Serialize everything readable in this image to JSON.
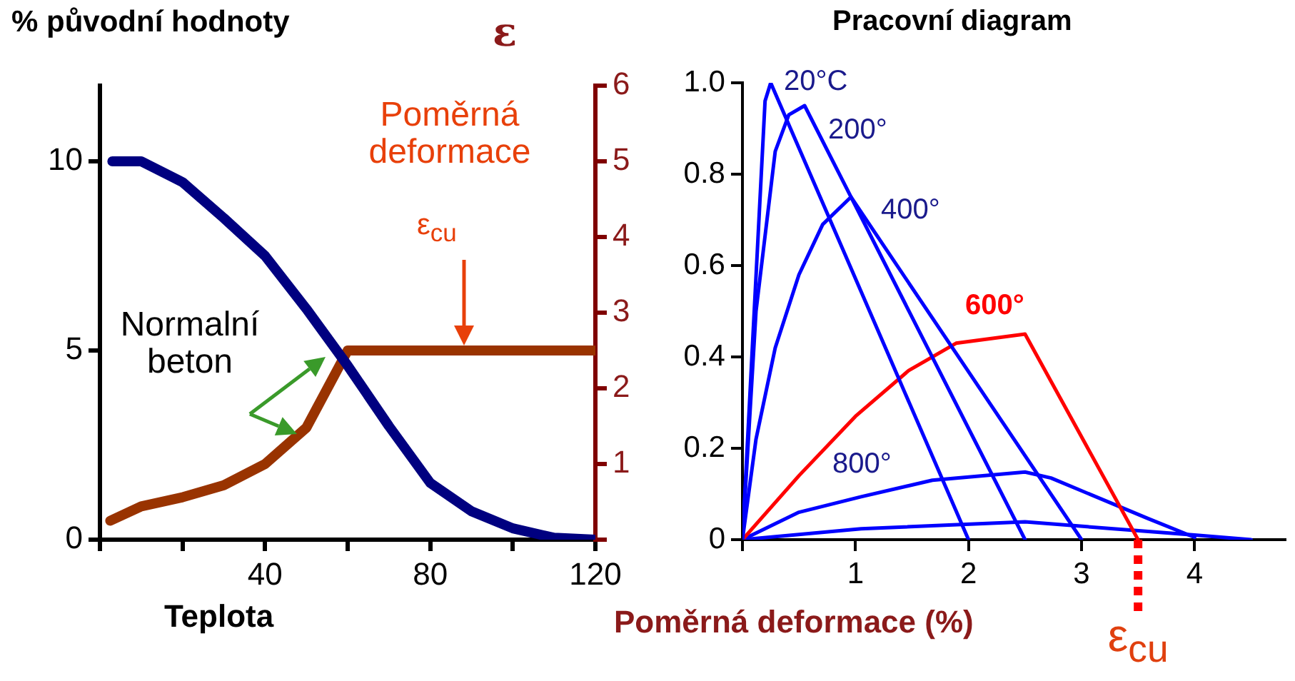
{
  "chart_data": [
    {
      "type": "line",
      "title": "% původní hodnoty",
      "xlabel": "Teplota",
      "y2label": "ε",
      "annotations": [
        "Poměrná deformace",
        "ε$_{cu}$",
        "Normalní beton"
      ],
      "xlim": [
        0,
        120
      ],
      "xticks": [
        {
          "value": 0,
          "label": null
        },
        {
          "value": 20,
          "label": null
        },
        40,
        {
          "value": 60,
          "label": null
        },
        80,
        {
          "value": 100,
          "label": null
        },
        120
      ],
      "ylim": [
        0,
        12
      ],
      "yticks": [
        0,
        5,
        10
      ],
      "y2lim": [
        0,
        6
      ],
      "y2ticks": [
        {
          "value": 0,
          "label": null
        },
        1,
        2,
        3,
        4,
        5,
        6
      ],
      "grid": false,
      "legend": false,
      "series": [
        {
          "color": "#000080",
          "x": [
            3,
            10,
            20,
            30,
            40,
            50,
            60,
            70,
            80,
            90,
            100,
            110,
            120
          ],
          "values": [
            10,
            10,
            9.45,
            8.5,
            7.5,
            6.1,
            4.6,
            3.0,
            1.5,
            0.75,
            0.3,
            0.05,
            0
          ]
        },
        {
          "color": "#993300",
          "axis": "y2",
          "x": [
            2.5,
            10,
            20,
            30,
            40,
            50,
            60,
            120
          ],
          "values": [
            0.25,
            0.44,
            0.56,
            0.72,
            1.0,
            1.48,
            2.5,
            2.5
          ]
        }
      ]
    },
    {
      "type": "line",
      "title": "Pracovní diagram",
      "xlabel": "Poměrná deformace (%)",
      "xlim": [
        0,
        4.8
      ],
      "xticks": [
        {
          "value": 0,
          "label": null
        },
        1,
        2,
        3,
        4
      ],
      "ylim": [
        0,
        1
      ],
      "yticks": [
        0,
        0.2,
        0.4,
        0.6,
        0.8,
        {
          "value": 1,
          "label": "1.0"
        }
      ],
      "grid": false,
      "legend": false,
      "ref_lines": [
        {
          "axis": "x",
          "value": 3.5,
          "label": "ε$_{cu}$",
          "color": "#ff0000",
          "line_style": "dotted"
        }
      ],
      "series": [
        {
          "name": "20°C",
          "color": "#0000ff",
          "x": [
            0,
            0.2,
            0.25,
            2.0
          ],
          "values": [
            0,
            0.96,
            1.0,
            0
          ]
        },
        {
          "name": "200°",
          "color": "#0000ff",
          "x": [
            0,
            0.12,
            0.29,
            0.41,
            0.55,
            2.5
          ],
          "values": [
            0,
            0.5,
            0.85,
            0.93,
            0.95,
            0
          ]
        },
        {
          "name": "400°",
          "color": "#0000ff",
          "x": [
            0,
            0.12,
            0.29,
            0.5,
            0.71,
            0.96,
            3.0
          ],
          "values": [
            0,
            0.22,
            0.42,
            0.58,
            0.69,
            0.75,
            0
          ]
        },
        {
          "name": "600°",
          "color": "#ff0000",
          "x": [
            0,
            0.5,
            1.0,
            1.47,
            1.89,
            2.5,
            3.5
          ],
          "values": [
            0,
            0.14,
            0.27,
            0.37,
            0.43,
            0.45,
            0
          ]
        },
        {
          "name": "800°",
          "color": "#0000ff",
          "x": [
            0,
            0.5,
            1.05,
            1.68,
            2.5,
            2.73,
            3.58,
            4.0
          ],
          "values": [
            0,
            0.06,
            0.094,
            0.13,
            0.148,
            0.135,
            0.047,
            0.005
          ]
        },
        {
          "color": "#0000ff",
          "x": [
            0,
            1.05,
            2.5,
            4.0,
            4.5
          ],
          "values": [
            0,
            0.024,
            0.039,
            0.01,
            0
          ]
        }
      ]
    }
  ]
}
